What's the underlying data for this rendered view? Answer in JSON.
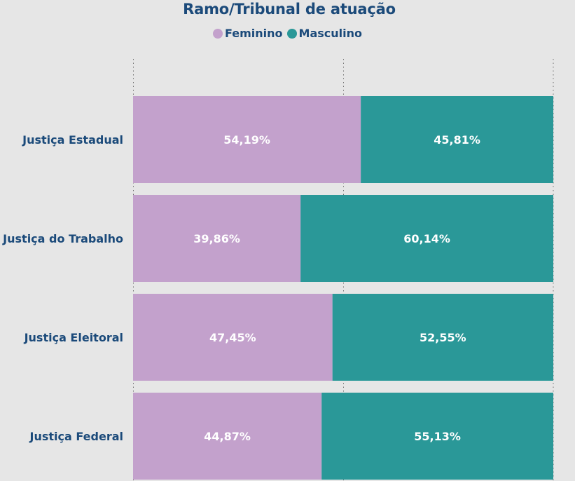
{
  "chart_data": {
    "type": "bar",
    "stacked": "100%",
    "orientation": "horizontal",
    "title": "Ramo/Tribunal de atuação",
    "categories": [
      "Justiça Estadual",
      "Justiça do Trabalho",
      "Justiça Eleitoral",
      "Justiça Federal"
    ],
    "series": [
      {
        "name": "Feminino",
        "color": "#c3a1cc",
        "values": [
          54.19,
          39.86,
          47.45,
          44.87
        ],
        "labels": [
          "54,19%",
          "39,86%",
          "47,45%",
          "44,87%"
        ]
      },
      {
        "name": "Masculino",
        "color": "#2a9898",
        "values": [
          45.81,
          60.14,
          52.55,
          55.13
        ],
        "labels": [
          "45,81%",
          "60,14%",
          "52,55%",
          "55,13%"
        ]
      }
    ],
    "xlim": [
      0,
      100
    ],
    "grid": "vertical dotted",
    "legend_position": "top-center"
  }
}
